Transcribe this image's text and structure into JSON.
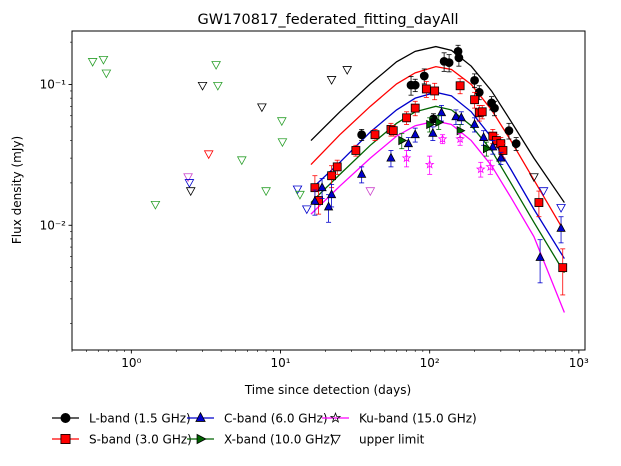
{
  "chart_data": {
    "type": "scatter",
    "title": "GW170817_federated_fitting_dayAll",
    "xlabel": "Time since detection (days)",
    "ylabel": "Flux density (mJy)",
    "xscale": "log",
    "yscale": "log",
    "xlim": [
      0.4,
      1100
    ],
    "ylim": [
      0.0013,
      0.24
    ],
    "x_ticks": [
      {
        "value": 1,
        "label": "10⁰"
      },
      {
        "value": 10,
        "label": "10¹"
      },
      {
        "value": 100,
        "label": "10²"
      },
      {
        "value": 1000,
        "label": "10³"
      }
    ],
    "y_ticks": [
      {
        "value": 0.01,
        "label": "10⁻²"
      },
      {
        "value": 0.1,
        "label": "10⁻¹"
      }
    ],
    "legend_position": "bottom",
    "series": [
      {
        "name": "L-band (1.5 GHz)",
        "color": "#000000",
        "marker": "circle",
        "points": [
          {
            "x": 35,
            "y": 0.044,
            "err": 0.004
          },
          {
            "x": 75,
            "y": 0.099,
            "err": 0.015
          },
          {
            "x": 80,
            "y": 0.099,
            "err": 0.01
          },
          {
            "x": 92,
            "y": 0.115,
            "err": 0.014
          },
          {
            "x": 106,
            "y": 0.057,
            "err": 0.005
          },
          {
            "x": 125,
            "y": 0.146,
            "err": 0.022
          },
          {
            "x": 135,
            "y": 0.143,
            "err": 0.02
          },
          {
            "x": 155,
            "y": 0.172,
            "err": 0.018
          },
          {
            "x": 157,
            "y": 0.155,
            "err": 0.02
          },
          {
            "x": 200,
            "y": 0.107,
            "err": 0.012
          },
          {
            "x": 215,
            "y": 0.088,
            "err": 0.01
          },
          {
            "x": 260,
            "y": 0.074,
            "err": 0.008
          },
          {
            "x": 272,
            "y": 0.068,
            "err": 0.008
          },
          {
            "x": 340,
            "y": 0.047,
            "err": 0.006
          },
          {
            "x": 380,
            "y": 0.038,
            "err": 0.004
          }
        ],
        "curve": [
          {
            "x": 16,
            "y": 0.04
          },
          {
            "x": 25,
            "y": 0.064
          },
          {
            "x": 40,
            "y": 0.101
          },
          {
            "x": 60,
            "y": 0.145
          },
          {
            "x": 80,
            "y": 0.172
          },
          {
            "x": 110,
            "y": 0.186
          },
          {
            "x": 140,
            "y": 0.175
          },
          {
            "x": 190,
            "y": 0.135
          },
          {
            "x": 260,
            "y": 0.09
          },
          {
            "x": 350,
            "y": 0.055
          },
          {
            "x": 500,
            "y": 0.03
          },
          {
            "x": 800,
            "y": 0.0145
          }
        ]
      },
      {
        "name": "S-band (3.0 GHz)",
        "color": "#ff0000",
        "marker": "square",
        "points": [
          {
            "x": 17,
            "y": 0.0185,
            "err": 0.004
          },
          {
            "x": 18,
            "y": 0.015,
            "err": 0.003
          },
          {
            "x": 22,
            "y": 0.0225,
            "err": 0.004
          },
          {
            "x": 24,
            "y": 0.026,
            "err": 0.003
          },
          {
            "x": 32,
            "y": 0.034,
            "err": 0.003
          },
          {
            "x": 43,
            "y": 0.044,
            "err": 0.004
          },
          {
            "x": 55,
            "y": 0.048,
            "err": 0.005
          },
          {
            "x": 57,
            "y": 0.047,
            "err": 0.004
          },
          {
            "x": 70,
            "y": 0.058,
            "err": 0.006
          },
          {
            "x": 80,
            "y": 0.068,
            "err": 0.008
          },
          {
            "x": 95,
            "y": 0.093,
            "err": 0.012
          },
          {
            "x": 108,
            "y": 0.09,
            "err": 0.012
          },
          {
            "x": 160,
            "y": 0.098,
            "err": 0.012
          },
          {
            "x": 200,
            "y": 0.078,
            "err": 0.01
          },
          {
            "x": 215,
            "y": 0.063,
            "err": 0.008
          },
          {
            "x": 225,
            "y": 0.064,
            "err": 0.007
          },
          {
            "x": 265,
            "y": 0.043,
            "err": 0.005
          },
          {
            "x": 280,
            "y": 0.04,
            "err": 0.004
          },
          {
            "x": 300,
            "y": 0.038,
            "err": 0.004
          },
          {
            "x": 310,
            "y": 0.034,
            "err": 0.004
          },
          {
            "x": 540,
            "y": 0.0145,
            "err": 0.003
          },
          {
            "x": 780,
            "y": 0.005,
            "err": 0.0018
          }
        ],
        "curve": [
          {
            "x": 16,
            "y": 0.027
          },
          {
            "x": 25,
            "y": 0.044
          },
          {
            "x": 40,
            "y": 0.07
          },
          {
            "x": 60,
            "y": 0.101
          },
          {
            "x": 80,
            "y": 0.121
          },
          {
            "x": 110,
            "y": 0.134
          },
          {
            "x": 140,
            "y": 0.128
          },
          {
            "x": 190,
            "y": 0.1
          },
          {
            "x": 260,
            "y": 0.066
          },
          {
            "x": 350,
            "y": 0.04
          },
          {
            "x": 500,
            "y": 0.021
          },
          {
            "x": 800,
            "y": 0.009
          }
        ]
      },
      {
        "name": "C-band (6.0 GHz)",
        "color": "#0000cc",
        "marker": "triangle-up",
        "points": [
          {
            "x": 17,
            "y": 0.0148,
            "err": 0.003
          },
          {
            "x": 19,
            "y": 0.0185,
            "err": 0.003
          },
          {
            "x": 21,
            "y": 0.0135,
            "err": 0.003
          },
          {
            "x": 22,
            "y": 0.0165,
            "err": 0.003
          },
          {
            "x": 35,
            "y": 0.023,
            "err": 0.003
          },
          {
            "x": 55,
            "y": 0.03,
            "err": 0.004
          },
          {
            "x": 72,
            "y": 0.038,
            "err": 0.004
          },
          {
            "x": 80,
            "y": 0.044,
            "err": 0.005
          },
          {
            "x": 105,
            "y": 0.045,
            "err": 0.005
          },
          {
            "x": 120,
            "y": 0.063,
            "err": 0.008
          },
          {
            "x": 150,
            "y": 0.059,
            "err": 0.007
          },
          {
            "x": 163,
            "y": 0.058,
            "err": 0.006
          },
          {
            "x": 200,
            "y": 0.052,
            "err": 0.006
          },
          {
            "x": 230,
            "y": 0.042,
            "err": 0.005
          },
          {
            "x": 265,
            "y": 0.036,
            "err": 0.004
          },
          {
            "x": 300,
            "y": 0.03,
            "err": 0.003
          },
          {
            "x": 550,
            "y": 0.0059,
            "err": 0.002
          },
          {
            "x": 760,
            "y": 0.0095,
            "err": 0.002
          }
        ],
        "curve": [
          {
            "x": 16,
            "y": 0.018
          },
          {
            "x": 25,
            "y": 0.028
          },
          {
            "x": 40,
            "y": 0.046
          },
          {
            "x": 60,
            "y": 0.066
          },
          {
            "x": 80,
            "y": 0.08
          },
          {
            "x": 110,
            "y": 0.088
          },
          {
            "x": 140,
            "y": 0.083
          },
          {
            "x": 190,
            "y": 0.064
          },
          {
            "x": 260,
            "y": 0.042
          },
          {
            "x": 350,
            "y": 0.025
          },
          {
            "x": 500,
            "y": 0.013
          },
          {
            "x": 800,
            "y": 0.0058
          }
        ]
      },
      {
        "name": "X-band (10.0 GHz)",
        "color": "#006400",
        "marker": "triangle-right",
        "points": [
          {
            "x": 65,
            "y": 0.04,
            "err": 0.005
          },
          {
            "x": 100,
            "y": 0.052,
            "err": 0.006
          },
          {
            "x": 115,
            "y": 0.054,
            "err": 0.006
          },
          {
            "x": 160,
            "y": 0.047,
            "err": 0.005
          },
          {
            "x": 240,
            "y": 0.035,
            "err": 0.004
          }
        ],
        "curve": [
          {
            "x": 16,
            "y": 0.0145
          },
          {
            "x": 25,
            "y": 0.023
          },
          {
            "x": 40,
            "y": 0.037
          },
          {
            "x": 60,
            "y": 0.053
          },
          {
            "x": 80,
            "y": 0.064
          },
          {
            "x": 110,
            "y": 0.07
          },
          {
            "x": 140,
            "y": 0.066
          },
          {
            "x": 190,
            "y": 0.051
          },
          {
            "x": 260,
            "y": 0.034
          },
          {
            "x": 350,
            "y": 0.02
          },
          {
            "x": 500,
            "y": 0.0105
          },
          {
            "x": 800,
            "y": 0.0046
          }
        ]
      },
      {
        "name": "Ku-band (15.0 GHz)",
        "color": "#ff00ff",
        "marker": "star",
        "points": [
          {
            "x": 70,
            "y": 0.03,
            "err": 0.004
          },
          {
            "x": 100,
            "y": 0.027,
            "err": 0.004
          },
          {
            "x": 122,
            "y": 0.041,
            "err": 0.003
          },
          {
            "x": 160,
            "y": 0.041,
            "err": 0.004
          },
          {
            "x": 220,
            "y": 0.025,
            "err": 0.003
          },
          {
            "x": 255,
            "y": 0.026,
            "err": 0.003
          }
        ],
        "curve": [
          {
            "x": 16,
            "y": 0.012
          },
          {
            "x": 25,
            "y": 0.019
          },
          {
            "x": 40,
            "y": 0.03
          },
          {
            "x": 60,
            "y": 0.043
          },
          {
            "x": 80,
            "y": 0.051
          },
          {
            "x": 110,
            "y": 0.055
          },
          {
            "x": 140,
            "y": 0.052
          },
          {
            "x": 190,
            "y": 0.04
          },
          {
            "x": 260,
            "y": 0.0265
          },
          {
            "x": 350,
            "y": 0.0158
          },
          {
            "x": 500,
            "y": 0.0083
          },
          {
            "x": 800,
            "y": 0.0024
          }
        ]
      }
    ],
    "upper_limits": {
      "name": "upper limit",
      "marker": "triangle-down-open",
      "points": [
        {
          "x": 0.55,
          "y": 0.145,
          "color": "#2ca02c"
        },
        {
          "x": 0.65,
          "y": 0.15,
          "color": "#2ca02c"
        },
        {
          "x": 0.68,
          "y": 0.12,
          "color": "#2ca02c"
        },
        {
          "x": 1.45,
          "y": 0.014,
          "color": "#2ca02c"
        },
        {
          "x": 2.4,
          "y": 0.022,
          "color": "#cc44cc"
        },
        {
          "x": 2.45,
          "y": 0.02,
          "color": "#0000cc"
        },
        {
          "x": 2.5,
          "y": 0.0175,
          "color": "#000000"
        },
        {
          "x": 3.0,
          "y": 0.098,
          "color": "#000000"
        },
        {
          "x": 3.3,
          "y": 0.032,
          "color": "#ff0000"
        },
        {
          "x": 3.7,
          "y": 0.138,
          "color": "#2ca02c"
        },
        {
          "x": 3.8,
          "y": 0.098,
          "color": "#2ca02c"
        },
        {
          "x": 5.5,
          "y": 0.029,
          "color": "#2ca02c"
        },
        {
          "x": 7.5,
          "y": 0.069,
          "color": "#000000"
        },
        {
          "x": 8.0,
          "y": 0.0175,
          "color": "#2ca02c"
        },
        {
          "x": 10.2,
          "y": 0.055,
          "color": "#2ca02c"
        },
        {
          "x": 10.3,
          "y": 0.039,
          "color": "#2ca02c"
        },
        {
          "x": 13.0,
          "y": 0.018,
          "color": "#0000cc"
        },
        {
          "x": 13.5,
          "y": 0.0165,
          "color": "#2ca02c"
        },
        {
          "x": 15.0,
          "y": 0.013,
          "color": "#0000cc"
        },
        {
          "x": 22,
          "y": 0.108,
          "color": "#000000"
        },
        {
          "x": 28,
          "y": 0.127,
          "color": "#000000"
        },
        {
          "x": 40,
          "y": 0.0175,
          "color": "#cc44cc"
        },
        {
          "x": 500,
          "y": 0.022,
          "color": "#000000"
        },
        {
          "x": 580,
          "y": 0.0175,
          "color": "#0000cc"
        },
        {
          "x": 760,
          "y": 0.0133,
          "color": "#0000cc"
        }
      ]
    }
  }
}
